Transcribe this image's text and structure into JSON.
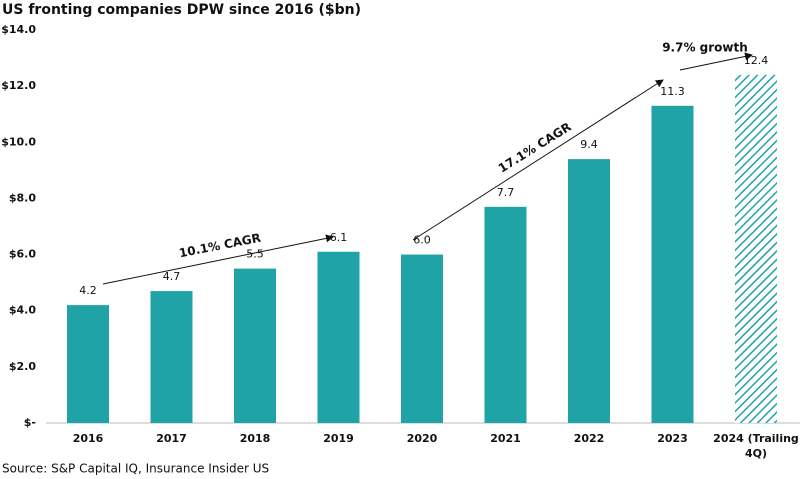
{
  "chart_data": {
    "type": "bar",
    "title": "US fronting companies DPW since 2016 ($bn)",
    "source": "Source: S&P Capital IQ, Insurance Insider US",
    "categories": [
      "2016",
      "2017",
      "2018",
      "2019",
      "2020",
      "2021",
      "2022",
      "2023",
      "2024 (Trailing 4Q)"
    ],
    "values": [
      4.2,
      4.7,
      5.5,
      6.1,
      6.0,
      7.7,
      9.4,
      11.3,
      12.4
    ],
    "value_labels": [
      "4.2",
      "4.7",
      "5.5",
      "6.1",
      "6.0",
      "7.7",
      "9.4",
      "11.3",
      "12.4"
    ],
    "hatched": [
      false,
      false,
      false,
      false,
      false,
      false,
      false,
      false,
      true
    ],
    "color": "#1fa3a6",
    "ylim": [
      0,
      14
    ],
    "yticks": [
      {
        "value": 0,
        "label": "$-"
      },
      {
        "value": 2,
        "label": "$2.0"
      },
      {
        "value": 4,
        "label": "$4.0"
      },
      {
        "value": 6,
        "label": "$6.0"
      },
      {
        "value": 8,
        "label": "$8.0"
      },
      {
        "value": 10,
        "label": "$10.0"
      },
      {
        "value": 12,
        "label": "$12.0"
      },
      {
        "value": 14,
        "label": "$14.0"
      }
    ],
    "grid": false,
    "annotations": [
      "10.1% CAGR",
      "17.1% CAGR",
      "9.7% growth"
    ]
  }
}
